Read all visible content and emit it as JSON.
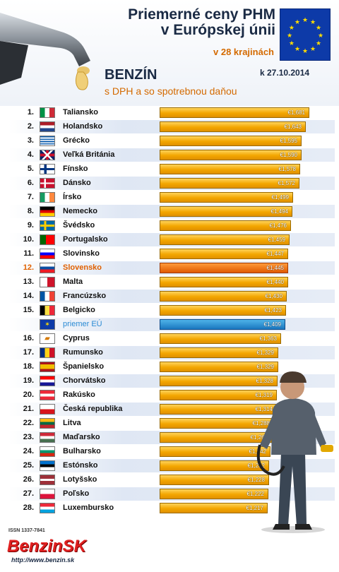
{
  "header": {
    "title_line1": "Priemerné ceny PHM",
    "title_line2": "v Európskej únii",
    "countries": "v 28 krajinách",
    "fuel": "BENZÍN",
    "date": "k 27.10.2014",
    "subtitle": "s DPH a so spotrebnou daňou"
  },
  "colors": {
    "bar": "#f3a600",
    "highlight": "#e05a00",
    "eu_average": "#1a77bf"
  },
  "chart_data": {
    "type": "bar",
    "orientation": "horizontal",
    "title": "Priemerné ceny PHM v Európskej únii",
    "unit": "€",
    "rows": [
      {
        "rank": "1.",
        "country": "Taliansko",
        "value": 1.681,
        "label": "€1,681",
        "flag": "it"
      },
      {
        "rank": "2.",
        "country": "Holandsko",
        "value": 1.643,
        "label": "€1,643",
        "flag": "nl"
      },
      {
        "rank": "3.",
        "country": "Grécko",
        "value": 1.595,
        "label": "€1,595",
        "flag": "gr"
      },
      {
        "rank": "4.",
        "country": "Veľká Británia",
        "value": 1.59,
        "label": "€1,590",
        "flag": "gb"
      },
      {
        "rank": "5.",
        "country": "Fínsko",
        "value": 1.578,
        "label": "€1,578",
        "flag": "fi"
      },
      {
        "rank": "6.",
        "country": "Dánsko",
        "value": 1.572,
        "label": "€1,572",
        "flag": "dk"
      },
      {
        "rank": "7.",
        "country": "Írsko",
        "value": 1.499,
        "label": "€1,499",
        "flag": "ie"
      },
      {
        "rank": "8.",
        "country": "Nemecko",
        "value": 1.494,
        "label": "€1,494",
        "flag": "de"
      },
      {
        "rank": "9.",
        "country": "Švédsko",
        "value": 1.476,
        "label": "€1,476",
        "flag": "se"
      },
      {
        "rank": "10.",
        "country": "Portugalsko",
        "value": 1.459,
        "label": "€1,459",
        "flag": "pt"
      },
      {
        "rank": "11.",
        "country": "Slovinsko",
        "value": 1.447,
        "label": "€1,447",
        "flag": "si"
      },
      {
        "rank": "12.",
        "country": "Slovensko",
        "value": 1.445,
        "label": "€1,445",
        "flag": "sk",
        "highlight": true
      },
      {
        "rank": "13.",
        "country": "Malta",
        "value": 1.44,
        "label": "€1,440",
        "flag": "mt"
      },
      {
        "rank": "14.",
        "country": "Francúzsko",
        "value": 1.43,
        "label": "€1,430",
        "flag": "fr"
      },
      {
        "rank": "15.",
        "country": "Belgicko",
        "value": 1.423,
        "label": "€1,423",
        "flag": "be"
      },
      {
        "rank": "",
        "country": "priemer EÚ",
        "value": 1.409,
        "label": "€1,409",
        "flag": "eu",
        "average": true
      },
      {
        "rank": "16.",
        "country": "Cyprus",
        "value": 1.363,
        "label": "€1,363",
        "flag": "cy"
      },
      {
        "rank": "17.",
        "country": "Rumunsko",
        "value": 1.329,
        "label": "€1,329",
        "flag": "ro"
      },
      {
        "rank": "18.",
        "country": "Španielsko",
        "value": 1.329,
        "label": "€1,329",
        "flag": "es"
      },
      {
        "rank": "19.",
        "country": "Chorvátsko",
        "value": 1.328,
        "label": "€1,328",
        "flag": "hr"
      },
      {
        "rank": "20.",
        "country": "Rakúsko",
        "value": 1.319,
        "label": "€1,319",
        "flag": "at"
      },
      {
        "rank": "21.",
        "country": "Česká republika",
        "value": 1.314,
        "label": "€1,314",
        "flag": "cz"
      },
      {
        "rank": "22.",
        "country": "Litva",
        "value": 1.288,
        "label": "€1,288",
        "flag": "lt"
      },
      {
        "rank": "23.",
        "country": "Maďarsko",
        "value": 1.26,
        "label": "€1,260",
        "flag": "hu"
      },
      {
        "rank": "24.",
        "country": "Bulharsko",
        "value": 1.242,
        "label": "€1,242",
        "flag": "bg"
      },
      {
        "rank": "25.",
        "country": "Estónsko",
        "value": 1.232,
        "label": "€1,232",
        "flag": "ee"
      },
      {
        "rank": "26.",
        "country": "Lotyšsko",
        "value": 1.228,
        "label": "€1,228",
        "flag": "lv"
      },
      {
        "rank": "27.",
        "country": "Poľsko",
        "value": 1.222,
        "label": "€1,222",
        "flag": "pl"
      },
      {
        "rank": "28.",
        "country": "Luxembursko",
        "value": 1.217,
        "label": "€1,217",
        "flag": "lu"
      }
    ]
  },
  "footer": {
    "issn": "ISSN 1337-7841",
    "logo": "BenzinSK",
    "url": "http://www.benzin.sk"
  }
}
